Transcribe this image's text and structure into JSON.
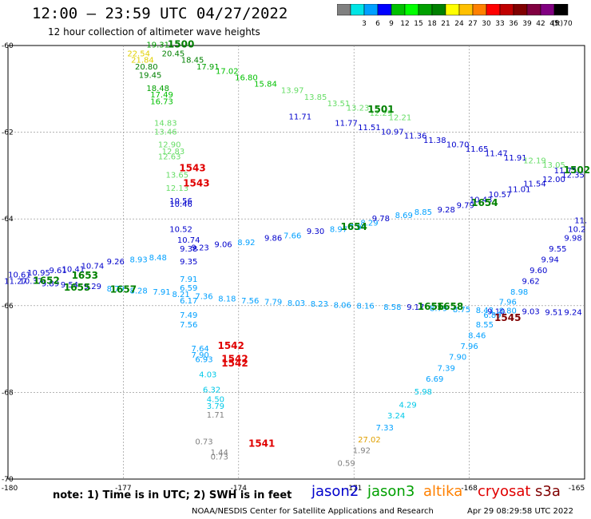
{
  "header": {
    "title": "12:00 – 23:59 UTC 04/27/2022",
    "subtitle": "12 hour collection of altimeter wave heights"
  },
  "colorbar": {
    "unit": "(ft)",
    "bins": [
      {
        "label": "",
        "color": "#808080"
      },
      {
        "label": "3",
        "color": "#00e5e5"
      },
      {
        "label": "6",
        "color": "#00a0ff"
      },
      {
        "label": "9",
        "color": "#0000ff"
      },
      {
        "label": "12",
        "color": "#00c000"
      },
      {
        "label": "15",
        "color": "#00ff00"
      },
      {
        "label": "18",
        "color": "#00a000"
      },
      {
        "label": "21",
        "color": "#008000"
      },
      {
        "label": "24",
        "color": "#ffff00"
      },
      {
        "label": "27",
        "color": "#ffc000"
      },
      {
        "label": "30",
        "color": "#ff8000"
      },
      {
        "label": "33",
        "color": "#ff0000"
      },
      {
        "label": "36",
        "color": "#c00000"
      },
      {
        "label": "39",
        "color": "#800000"
      },
      {
        "label": "42",
        "color": "#800040"
      },
      {
        "label": "45",
        "color": "#800080"
      },
      {
        "label": "70",
        "color": "#000000"
      }
    ]
  },
  "chart_data": {
    "type": "scatter",
    "xlim": [
      -180,
      -165
    ],
    "ylim": [
      -70,
      -60
    ],
    "x_ticks": [
      {
        "v": -180,
        "label": "-180"
      },
      {
        "v": -177,
        "label": "-177"
      },
      {
        "v": -174,
        "label": "-174"
      },
      {
        "v": -171,
        "label": "-171"
      },
      {
        "v": -168,
        "label": "-168"
      },
      {
        "v": -165,
        "label": "-165"
      }
    ],
    "y_ticks": [
      {
        "v": -60,
        "label": "-60"
      },
      {
        "v": -62,
        "label": "-62"
      },
      {
        "v": -64,
        "label": "-64"
      },
      {
        "v": -66,
        "label": "-66"
      },
      {
        "v": -68,
        "label": "-68"
      },
      {
        "v": -70,
        "label": "-70"
      }
    ],
    "grid": true,
    "points": [
      {
        "lon": -176.1,
        "lat": -60.05,
        "t": "19.31",
        "c": "#00a000"
      },
      {
        "lon": -175.7,
        "lat": -60.25,
        "t": "20.45",
        "c": "#008000"
      },
      {
        "lon": -175.2,
        "lat": -60.4,
        "t": "18.45",
        "c": "#008000"
      },
      {
        "lon": -174.8,
        "lat": -60.55,
        "t": "17.91",
        "c": "#00a000"
      },
      {
        "lon": -174.3,
        "lat": -60.65,
        "t": "17.02",
        "c": "#00c000"
      },
      {
        "lon": -173.8,
        "lat": -60.8,
        "t": "16.80",
        "c": "#00c000"
      },
      {
        "lon": -173.3,
        "lat": -60.95,
        "t": "15.84",
        "c": "#00c000"
      },
      {
        "lon": -172.6,
        "lat": -61.1,
        "t": "13.97",
        "c": "#66dd66"
      },
      {
        "lon": -172.0,
        "lat": -61.25,
        "t": "13.85",
        "c": "#66dd66"
      },
      {
        "lon": -171.4,
        "lat": -61.4,
        "t": "13.51",
        "c": "#66dd66"
      },
      {
        "lon": -170.9,
        "lat": -61.5,
        "t": "13.23",
        "c": "#66dd66"
      },
      {
        "lon": -170.3,
        "lat": -61.62,
        "t": "12.29",
        "c": "#66dd66"
      },
      {
        "lon": -169.8,
        "lat": -61.72,
        "t": "12.21",
        "c": "#66dd66"
      },
      {
        "lon": -176.6,
        "lat": -60.25,
        "t": "22.54",
        "c": "#e0d000"
      },
      {
        "lon": -176.5,
        "lat": -60.4,
        "t": "21.84",
        "c": "#e0d000"
      },
      {
        "lon": -176.4,
        "lat": -60.55,
        "t": "20.80",
        "c": "#008000"
      },
      {
        "lon": -176.3,
        "lat": -60.75,
        "t": "19.45",
        "c": "#008000"
      },
      {
        "lon": -176.1,
        "lat": -61.05,
        "t": "18.48",
        "c": "#00a000"
      },
      {
        "lon": -176.0,
        "lat": -61.2,
        "t": "17.49",
        "c": "#00c000"
      },
      {
        "lon": -176.0,
        "lat": -61.35,
        "t": "16.73",
        "c": "#00c000"
      },
      {
        "lon": -175.9,
        "lat": -61.85,
        "t": "14.83",
        "c": "#66dd66"
      },
      {
        "lon": -175.9,
        "lat": -62.05,
        "t": "13.46",
        "c": "#66dd66"
      },
      {
        "lon": -175.8,
        "lat": -62.35,
        "t": "12.90",
        "c": "#66dd66"
      },
      {
        "lon": -175.7,
        "lat": -62.5,
        "t": "12.83",
        "c": "#66dd66"
      },
      {
        "lon": -175.8,
        "lat": -62.62,
        "t": "12.63",
        "c": "#66dd66"
      },
      {
        "lon": -175.6,
        "lat": -63.05,
        "t": "13.65",
        "c": "#66dd66"
      },
      {
        "lon": -175.6,
        "lat": -63.35,
        "t": "12.13",
        "c": "#66dd66"
      },
      {
        "lon": -175.5,
        "lat": -63.65,
        "t": "10.56",
        "c": "#0000cc"
      },
      {
        "lon": -175.5,
        "lat": -63.72,
        "t": "10.46",
        "c": "#0000cc"
      },
      {
        "lon": -175.5,
        "lat": -64.3,
        "t": "10.52",
        "c": "#0000cc"
      },
      {
        "lon": -175.3,
        "lat": -64.55,
        "t": "10.74",
        "c": "#0000cc"
      },
      {
        "lon": -175.3,
        "lat": -64.75,
        "t": "9.38",
        "c": "#0000cc"
      },
      {
        "lon": -175.3,
        "lat": -65.05,
        "t": "9.35",
        "c": "#0000cc"
      },
      {
        "lon": -175.3,
        "lat": -65.45,
        "t": "7.91",
        "c": "#00a0ff"
      },
      {
        "lon": -175.3,
        "lat": -65.65,
        "t": "6.59",
        "c": "#00a0ff"
      },
      {
        "lon": -175.3,
        "lat": -65.95,
        "t": "6.17",
        "c": "#00a0ff"
      },
      {
        "lon": -175.3,
        "lat": -66.28,
        "t": "7.49",
        "c": "#00a0ff"
      },
      {
        "lon": -175.3,
        "lat": -66.5,
        "t": "7.56",
        "c": "#00a0ff"
      },
      {
        "lon": -175.0,
        "lat": -67.05,
        "t": "7.64",
        "c": "#00a0ff"
      },
      {
        "lon": -175.0,
        "lat": -67.2,
        "t": "7.90",
        "c": "#00a0ff"
      },
      {
        "lon": -174.9,
        "lat": -67.3,
        "t": "6.93",
        "c": "#00a0ff"
      },
      {
        "lon": -174.8,
        "lat": -67.65,
        "t": "4.03",
        "c": "#00c8e8"
      },
      {
        "lon": -174.7,
        "lat": -68.0,
        "t": "6.32",
        "c": "#00c8e8"
      },
      {
        "lon": -174.6,
        "lat": -68.22,
        "t": "4.50",
        "c": "#00c8e8"
      },
      {
        "lon": -174.6,
        "lat": -68.38,
        "t": "3.79",
        "c": "#00c8e8"
      },
      {
        "lon": -174.6,
        "lat": -68.58,
        "t": "1.71",
        "c": "#808080"
      },
      {
        "lon": -174.9,
        "lat": -69.2,
        "t": "0.73",
        "c": "#808080"
      },
      {
        "lon": -174.5,
        "lat": -69.45,
        "t": "1.44",
        "c": "#808080"
      },
      {
        "lon": -174.5,
        "lat": -69.55,
        "t": "0.73",
        "c": "#808080"
      },
      {
        "lon": -175.0,
        "lat": -64.72,
        "t": "9.23",
        "c": "#0000cc"
      },
      {
        "lon": -174.4,
        "lat": -64.65,
        "t": "9.06",
        "c": "#0000cc"
      },
      {
        "lon": -173.8,
        "lat": -64.6,
        "t": "8.92",
        "c": "#00a0ff"
      },
      {
        "lon": -173.1,
        "lat": -64.5,
        "t": "9.86",
        "c": "#0000cc"
      },
      {
        "lon": -172.6,
        "lat": -64.45,
        "t": "7.66",
        "c": "#00a0ff"
      },
      {
        "lon": -172.0,
        "lat": -64.35,
        "t": "9.30",
        "c": "#0000cc"
      },
      {
        "lon": -171.4,
        "lat": -64.3,
        "t": "8.97",
        "c": "#00a0ff"
      },
      {
        "lon": -170.9,
        "lat": -64.25,
        "t": "7.94",
        "c": "#00a0ff"
      },
      {
        "lon": -170.6,
        "lat": -64.15,
        "t": "8.29",
        "c": "#00a0ff"
      },
      {
        "lon": -170.3,
        "lat": -64.05,
        "t": "9.78",
        "c": "#0000cc"
      },
      {
        "lon": -169.7,
        "lat": -63.98,
        "t": "8.69",
        "c": "#00a0ff"
      },
      {
        "lon": -169.2,
        "lat": -63.9,
        "t": "8.85",
        "c": "#00a0ff"
      },
      {
        "lon": -168.6,
        "lat": -63.85,
        "t": "9.28",
        "c": "#0000cc"
      },
      {
        "lon": -168.1,
        "lat": -63.75,
        "t": "9.79",
        "c": "#0000cc"
      },
      {
        "lon": -167.7,
        "lat": -63.62,
        "t": "10.43",
        "c": "#0000cc"
      },
      {
        "lon": -167.2,
        "lat": -63.5,
        "t": "10.57",
        "c": "#0000cc"
      },
      {
        "lon": -166.7,
        "lat": -63.38,
        "t": "11.01",
        "c": "#0000cc"
      },
      {
        "lon": -166.3,
        "lat": -63.25,
        "t": "11.54",
        "c": "#0000cc"
      },
      {
        "lon": -165.8,
        "lat": -63.15,
        "t": "12.00",
        "c": "#0000cc"
      },
      {
        "lon": -165.3,
        "lat": -63.05,
        "t": "12.35",
        "c": "#0000cc"
      },
      {
        "lon": -172.4,
        "lat": -61.7,
        "t": "11.71",
        "c": "#0000cc"
      },
      {
        "lon": -171.2,
        "lat": -61.85,
        "t": "11.77",
        "c": "#0000cc"
      },
      {
        "lon": -170.6,
        "lat": -61.95,
        "t": "11.51",
        "c": "#0000cc"
      },
      {
        "lon": -170.0,
        "lat": -62.05,
        "t": "10.97",
        "c": "#0000cc"
      },
      {
        "lon": -169.4,
        "lat": -62.15,
        "t": "11.36",
        "c": "#0000cc"
      },
      {
        "lon": -168.9,
        "lat": -62.25,
        "t": "11.38",
        "c": "#0000cc"
      },
      {
        "lon": -168.3,
        "lat": -62.35,
        "t": "10.70",
        "c": "#0000cc"
      },
      {
        "lon": -167.8,
        "lat": -62.45,
        "t": "11.65",
        "c": "#0000cc"
      },
      {
        "lon": -167.3,
        "lat": -62.55,
        "t": "11.47",
        "c": "#0000cc"
      },
      {
        "lon": -166.8,
        "lat": -62.65,
        "t": "11.91",
        "c": "#0000cc"
      },
      {
        "lon": -166.3,
        "lat": -62.72,
        "t": "12.19",
        "c": "#66dd66"
      },
      {
        "lon": -165.8,
        "lat": -62.82,
        "t": "13.05",
        "c": "#66dd66"
      },
      {
        "lon": -165.5,
        "lat": -62.95,
        "t": "11.75",
        "c": "#0000cc"
      },
      {
        "lon": -179.7,
        "lat": -65.35,
        "t": "10.61",
        "c": "#0000cc"
      },
      {
        "lon": -179.2,
        "lat": -65.3,
        "t": "10.95",
        "c": "#0000cc"
      },
      {
        "lon": -178.7,
        "lat": -65.25,
        "t": "9.61",
        "c": "#0000cc"
      },
      {
        "lon": -178.3,
        "lat": -65.22,
        "t": "10.41",
        "c": "#0000cc"
      },
      {
        "lon": -177.8,
        "lat": -65.15,
        "t": "10.74",
        "c": "#0000cc"
      },
      {
        "lon": -177.2,
        "lat": -65.05,
        "t": "9.26",
        "c": "#0000cc"
      },
      {
        "lon": -176.6,
        "lat": -65.0,
        "t": "8.93",
        "c": "#00a0ff"
      },
      {
        "lon": -176.1,
        "lat": -64.95,
        "t": "8.48",
        "c": "#00a0ff"
      },
      {
        "lon": -179.8,
        "lat": -65.5,
        "t": "11.27",
        "c": "#0000cc"
      },
      {
        "lon": -179.4,
        "lat": -65.5,
        "t": "10.37",
        "c": "#0000cc"
      },
      {
        "lon": -178.9,
        "lat": -65.55,
        "t": "9.89",
        "c": "#0000cc"
      },
      {
        "lon": -178.4,
        "lat": -65.58,
        "t": "9.54",
        "c": "#0000cc"
      },
      {
        "lon": -177.8,
        "lat": -65.62,
        "t": "9.29",
        "c": "#0000cc"
      },
      {
        "lon": -177.2,
        "lat": -65.67,
        "t": "8.79",
        "c": "#00a0ff"
      },
      {
        "lon": -176.6,
        "lat": -65.72,
        "t": "8.28",
        "c": "#00a0ff"
      },
      {
        "lon": -176.0,
        "lat": -65.75,
        "t": "7.91",
        "c": "#00a0ff"
      },
      {
        "lon": -175.5,
        "lat": -65.8,
        "t": "8.21",
        "c": "#00a0ff"
      },
      {
        "lon": -174.9,
        "lat": -65.85,
        "t": "7.36",
        "c": "#00a0ff"
      },
      {
        "lon": -174.3,
        "lat": -65.9,
        "t": "8.18",
        "c": "#00a0ff"
      },
      {
        "lon": -173.7,
        "lat": -65.95,
        "t": "7.56",
        "c": "#00a0ff"
      },
      {
        "lon": -173.1,
        "lat": -65.98,
        "t": "7.79",
        "c": "#00a0ff"
      },
      {
        "lon": -172.5,
        "lat": -66.0,
        "t": "8.03",
        "c": "#00a0ff"
      },
      {
        "lon": -171.9,
        "lat": -66.02,
        "t": "8.23",
        "c": "#00a0ff"
      },
      {
        "lon": -171.3,
        "lat": -66.05,
        "t": "8.06",
        "c": "#00a0ff"
      },
      {
        "lon": -170.7,
        "lat": -66.07,
        "t": "8.16",
        "c": "#00a0ff"
      },
      {
        "lon": -170.0,
        "lat": -66.1,
        "t": "8.58",
        "c": "#00a0ff"
      },
      {
        "lon": -169.4,
        "lat": -66.1,
        "t": "9.17",
        "c": "#0000cc"
      },
      {
        "lon": -168.8,
        "lat": -66.12,
        "t": "8.79",
        "c": "#00a0ff"
      },
      {
        "lon": -168.2,
        "lat": -66.15,
        "t": "8.75",
        "c": "#00a0ff"
      },
      {
        "lon": -167.6,
        "lat": -66.17,
        "t": "8.43",
        "c": "#00a0ff"
      },
      {
        "lon": -167.0,
        "lat": -66.18,
        "t": "8.80",
        "c": "#00a0ff"
      },
      {
        "lon": -166.4,
        "lat": -66.2,
        "t": "9.03",
        "c": "#0000cc"
      },
      {
        "lon": -165.8,
        "lat": -66.22,
        "t": "9.51",
        "c": "#0000cc"
      },
      {
        "lon": -165.3,
        "lat": -66.22,
        "t": "9.24",
        "c": "#0000cc"
      },
      {
        "lon": -165.1,
        "lat": -64.1,
        "t": "11.",
        "c": "#0000cc"
      },
      {
        "lon": -165.2,
        "lat": -64.3,
        "t": "10.2",
        "c": "#0000cc"
      },
      {
        "lon": -165.3,
        "lat": -64.5,
        "t": "9.98",
        "c": "#0000cc"
      },
      {
        "lon": -165.7,
        "lat": -64.75,
        "t": "9.55",
        "c": "#0000cc"
      },
      {
        "lon": -165.9,
        "lat": -65.0,
        "t": "9.94",
        "c": "#0000cc"
      },
      {
        "lon": -166.2,
        "lat": -65.25,
        "t": "9.60",
        "c": "#0000cc"
      },
      {
        "lon": -166.4,
        "lat": -65.5,
        "t": "9.62",
        "c": "#0000cc"
      },
      {
        "lon": -166.7,
        "lat": -65.75,
        "t": "8.98",
        "c": "#00a0ff"
      },
      {
        "lon": -167.0,
        "lat": -65.98,
        "t": "7.96",
        "c": "#00a0ff"
      },
      {
        "lon": -167.3,
        "lat": -66.2,
        "t": "9.10",
        "c": "#0000cc"
      },
      {
        "lon": -167.4,
        "lat": -66.28,
        "t": "6.89",
        "c": "#00a0ff"
      },
      {
        "lon": -167.6,
        "lat": -66.5,
        "t": "8.55",
        "c": "#00a0ff"
      },
      {
        "lon": -167.8,
        "lat": -66.75,
        "t": "8.46",
        "c": "#00a0ff"
      },
      {
        "lon": -168.0,
        "lat": -67.0,
        "t": "7.96",
        "c": "#00a0ff"
      },
      {
        "lon": -168.3,
        "lat": -67.25,
        "t": "7.90",
        "c": "#00a0ff"
      },
      {
        "lon": -168.6,
        "lat": -67.5,
        "t": "7.39",
        "c": "#00a0ff"
      },
      {
        "lon": -168.9,
        "lat": -67.75,
        "t": "6.69",
        "c": "#00a0ff"
      },
      {
        "lon": -169.2,
        "lat": -68.05,
        "t": "5.98",
        "c": "#00c8e8"
      },
      {
        "lon": -169.6,
        "lat": -68.35,
        "t": "4.29",
        "c": "#00c8e8"
      },
      {
        "lon": -169.9,
        "lat": -68.6,
        "t": "3.24",
        "c": "#00c8e8"
      },
      {
        "lon": -170.2,
        "lat": -68.88,
        "t": "7.33",
        "c": "#00a0ff"
      },
      {
        "lon": -170.6,
        "lat": -69.15,
        "t": "27.02",
        "c": "#e0a000"
      },
      {
        "lon": -170.8,
        "lat": -69.4,
        "t": "1.92",
        "c": "#808080"
      },
      {
        "lon": -171.2,
        "lat": -69.7,
        "t": "0.59",
        "c": "#808080"
      }
    ],
    "time_labels": [
      {
        "lon": -175.5,
        "lat": -60.05,
        "t": "1500",
        "c": "#008000"
      },
      {
        "lon": -170.3,
        "lat": -61.55,
        "t": "1501",
        "c": "#008000"
      },
      {
        "lon": -165.2,
        "lat": -62.95,
        "t": "1502",
        "c": "#008000"
      },
      {
        "lon": -167.6,
        "lat": -63.7,
        "t": "1654",
        "c": "#008000"
      },
      {
        "lon": -171.0,
        "lat": -64.25,
        "t": "1654",
        "c": "#008000"
      },
      {
        "lon": -179.0,
        "lat": -65.5,
        "t": "1652",
        "c": "#008000"
      },
      {
        "lon": -178.0,
        "lat": -65.38,
        "t": "1653",
        "c": "#008000"
      },
      {
        "lon": -178.2,
        "lat": -65.65,
        "t": "1655",
        "c": "#008000"
      },
      {
        "lon": -177.0,
        "lat": -65.7,
        "t": "1657",
        "c": "#008000"
      },
      {
        "lon": -169.0,
        "lat": -66.1,
        "t": "1656",
        "c": "#008000"
      },
      {
        "lon": -168.5,
        "lat": -66.1,
        "t": "1658",
        "c": "#008000"
      },
      {
        "lon": -175.2,
        "lat": -62.9,
        "t": "1543",
        "c": "#e00000"
      },
      {
        "lon": -175.1,
        "lat": -63.25,
        "t": "1543",
        "c": "#e00000"
      },
      {
        "lon": -174.2,
        "lat": -67.0,
        "t": "1542",
        "c": "#e00000"
      },
      {
        "lon": -174.1,
        "lat": -67.3,
        "t": "1542",
        "c": "#e00000"
      },
      {
        "lon": -174.1,
        "lat": -67.4,
        "t": "1542",
        "c": "#e00000"
      },
      {
        "lon": -167.0,
        "lat": -66.35,
        "t": "1545",
        "c": "#800000"
      },
      {
        "lon": -173.4,
        "lat": -69.25,
        "t": "1541",
        "c": "#e00000"
      }
    ]
  },
  "note": "note: 1) Time is in UTC; 2) SWH is in feet",
  "legend": [
    {
      "label": "jason2",
      "color": "#0000cc"
    },
    {
      "label": "jason3",
      "color": "#00a000"
    },
    {
      "label": "altika",
      "color": "#ff8000"
    },
    {
      "label": "cryosat",
      "color": "#e00000"
    },
    {
      "label": "s3a",
      "color": "#800000"
    }
  ],
  "footer": {
    "credit": "NOAA/NESDIS Center for Satellite Applications and Research",
    "timestamp": "Apr 29 08:29:58 UTC 2022"
  }
}
